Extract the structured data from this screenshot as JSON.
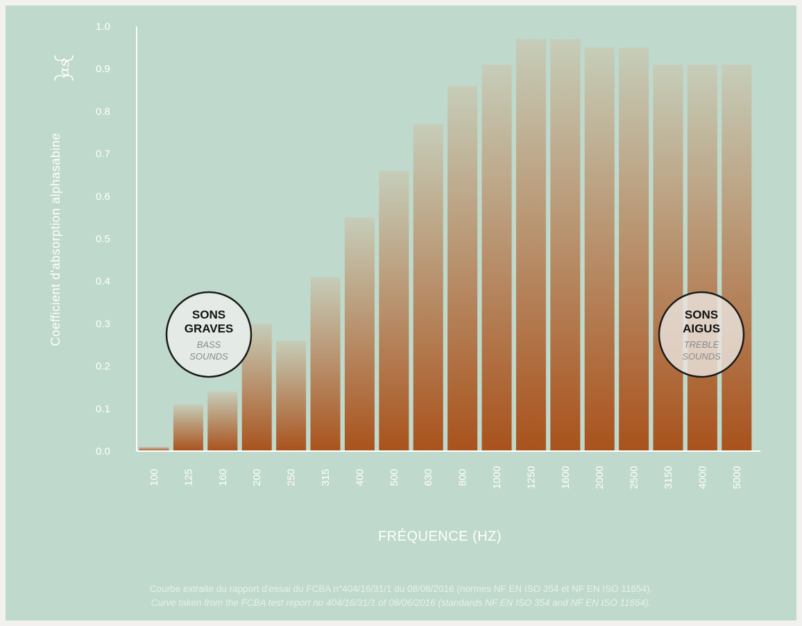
{
  "colors": {
    "background": "#bfd9cc",
    "bar_top": "#c6cdb9",
    "bar_bottom": "#a9521c",
    "axis": "#ffffff"
  },
  "chart_data": {
    "type": "bar",
    "categories": [
      "100",
      "125",
      "160",
      "200",
      "250",
      "315",
      "400",
      "500",
      "630",
      "800",
      "1000",
      "1250",
      "1600",
      "2000",
      "2500",
      "3150",
      "4000",
      "5000"
    ],
    "values": [
      0.01,
      0.11,
      0.14,
      0.3,
      0.26,
      0.41,
      0.55,
      0.66,
      0.77,
      0.86,
      0.91,
      0.97,
      0.97,
      0.95,
      0.95,
      0.91,
      0.91,
      0.91
    ],
    "xlabel": "FRÉQUENCE (HZ)",
    "ylabel": "Coefficient d'absorption alphasabine",
    "ylabel_symbol": "αs",
    "ylim": [
      0,
      1.0
    ],
    "yticks": [
      "0.0",
      "0.1",
      "0.2",
      "0.3",
      "0.4",
      "0.5",
      "0.6",
      "0.7",
      "0.8",
      "0.9",
      "1.0"
    ],
    "grid": false,
    "annotations": [
      {
        "title_line1": "SONS",
        "title_line2": "GRAVES",
        "sub_line1": "BASS",
        "sub_line2": "SOUNDS"
      },
      {
        "title_line1": "SONS",
        "title_line2": "AIGUS",
        "sub_line1": "TREBLE",
        "sub_line2": "SOUNDS"
      }
    ]
  },
  "footnote": {
    "line1": "Courbe extraite du rapport d'essai du FCBA n°404/16/31/1 du 08/06/2016 (normes NF EN ISO 354 et NF EN ISO 11654).",
    "line2": "Curve taken from the FCBA test report no 404/16/31/1 of 08/06/2016 (standards NF EN ISO 354 and NF EN ISO 11654)."
  }
}
